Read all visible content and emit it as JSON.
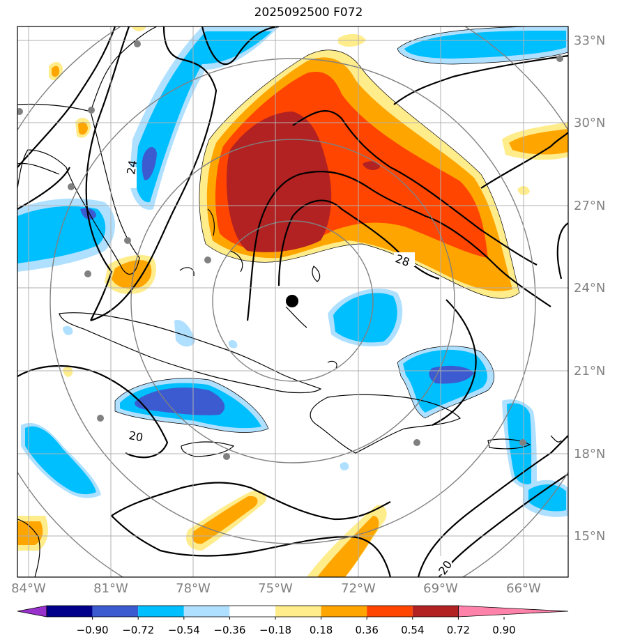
{
  "title": "2025092500 F072",
  "lat_labels": [
    "33°N",
    "30°N",
    "27°N",
    "24°N",
    "21°N",
    "18°N",
    "15°N"
  ],
  "lon_labels": [
    "84°W",
    "81°W",
    "78°W",
    "75°W",
    "72°W",
    "69°W",
    "66°W"
  ],
  "contour_labels": [
    "24",
    "28",
    "20",
    "20"
  ],
  "colorbar": {
    "ticks": [
      "−0.90",
      "−0.72",
      "−0.54",
      "−0.36",
      "−0.18",
      "0.18",
      "0.36",
      "0.54",
      "0.72",
      "0.90"
    ],
    "colors": [
      "#9932cc",
      "#00008b",
      "#3c5bd0",
      "#00bfff",
      "#b0e0ff",
      "#ffffff",
      "#ffec8b",
      "#ffa500",
      "#ff4500",
      "#b22222",
      "#ff82ab"
    ]
  },
  "colors": {
    "grid": "#b0b0b0",
    "range_ring": "#808080",
    "label_gray": "#808080",
    "dark_red": "#b22222",
    "red_orange": "#ff4500",
    "orange": "#ffa500",
    "yellow": "#ffec8b",
    "light_blue": "#b0e0ff",
    "blue": "#00bfff",
    "royal_blue": "#3c5bd0"
  }
}
